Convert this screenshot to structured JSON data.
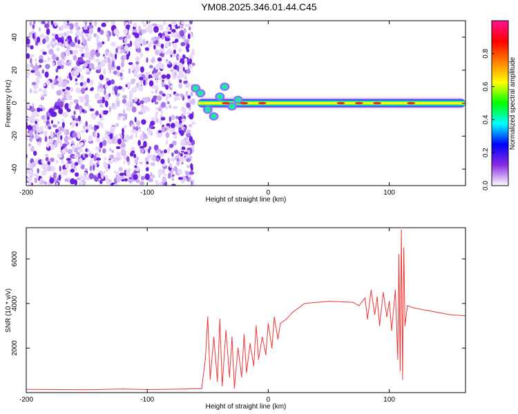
{
  "title": "YM08.2025.346.01.44.C45",
  "chart_data": [
    {
      "type": "heatmap",
      "name": "spectrogram",
      "xlabel": "Height of straight line (km)",
      "ylabel": "Frequency (Hz)",
      "xlim": [
        -200,
        163
      ],
      "ylim": [
        -50,
        50
      ],
      "xticks": [
        -200,
        -100,
        0,
        100
      ],
      "xtick_labels": [
        "-200",
        "-100",
        "0",
        "100"
      ],
      "yticks": [
        -40,
        -20,
        0,
        20,
        40
      ],
      "ytick_labels": [
        "-40",
        "-20",
        "0",
        "20",
        "40"
      ],
      "noise_region_x": [
        -200,
        -64
      ],
      "signal_band_center_hz": 0,
      "colorbar": {
        "label": "Normalized spectral amplitude",
        "range": [
          0,
          1
        ],
        "ticks": [
          0.0,
          0.2,
          0.4,
          0.6,
          0.8
        ],
        "tick_labels": [
          "0.0",
          "0.2",
          "0.4",
          "0.6",
          "0.8"
        ],
        "colors": [
          "#ffffff",
          "#8a2be2",
          "#0000ff",
          "#00ffff",
          "#00ff00",
          "#ffff00",
          "#ff8000",
          "#ff0000",
          "#ff1493"
        ]
      }
    },
    {
      "type": "line",
      "name": "snr",
      "xlabel": "Height of straight line (km)",
      "ylabel": "SNR (10 * v/v)",
      "xlim": [
        -200,
        163
      ],
      "ylim": [
        0,
        7400
      ],
      "xticks": [
        -200,
        -100,
        0,
        100
      ],
      "xtick_labels": [
        "-200",
        "-100",
        "0",
        "100"
      ],
      "yticks": [
        2000,
        4000,
        6000
      ],
      "ytick_labels": [
        "2000",
        "4000",
        "6000"
      ],
      "color": "#ee3333",
      "series": [
        {
          "name": "SNR",
          "x": [
            -200,
            -150,
            -120,
            -100,
            -70,
            -55,
            -52,
            -50,
            -48,
            -45,
            -42,
            -40,
            -38,
            -35,
            -32,
            -30,
            -28,
            -25,
            -22,
            -20,
            -18,
            -15,
            -12,
            -10,
            -8,
            -5,
            -2,
            0,
            3,
            5,
            8,
            10,
            15,
            20,
            25,
            30,
            40,
            50,
            60,
            70,
            75,
            80,
            82,
            85,
            88,
            90,
            92,
            95,
            98,
            100,
            102,
            105,
            107,
            108,
            109,
            110,
            111,
            112,
            113,
            115,
            120,
            130,
            140,
            150,
            163
          ],
          "values": [
            150,
            130,
            160,
            140,
            160,
            180,
            1500,
            3400,
            600,
            2500,
            500,
            3300,
            300,
            2800,
            700,
            2500,
            200,
            2000,
            700,
            2600,
            900,
            2200,
            1200,
            3000,
            1500,
            2500,
            1700,
            3100,
            2000,
            3400,
            2400,
            3100,
            3300,
            3600,
            3800,
            4000,
            4050,
            4100,
            4080,
            4050,
            3900,
            4250,
            3300,
            4600,
            3500,
            4300,
            3000,
            4500,
            3400,
            4100,
            2800,
            4600,
            1500,
            6200,
            1000,
            7300,
            600,
            6500,
            3000,
            3900,
            3800,
            3700,
            3600,
            3500,
            3450
          ]
        }
      ]
    }
  ]
}
